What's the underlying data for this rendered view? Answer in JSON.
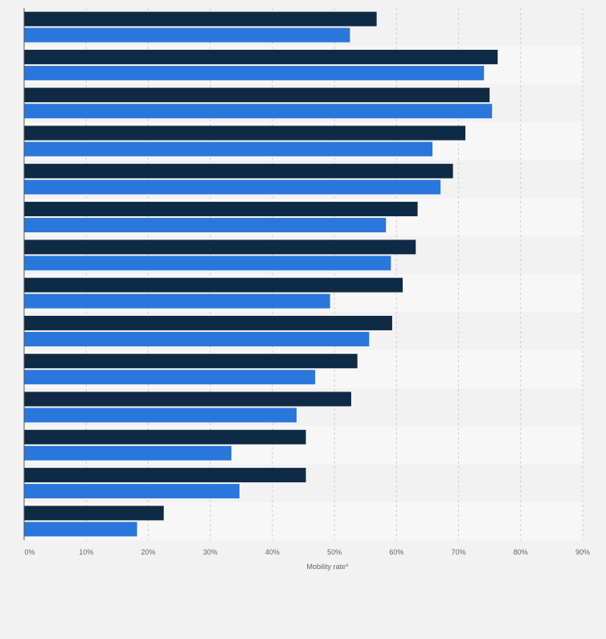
{
  "chart_data": {
    "type": "bar",
    "orientation": "horizontal",
    "xlabel": "Mobility rate*",
    "xlim": [
      0,
      90
    ],
    "x_ticks": [
      0,
      10,
      20,
      30,
      40,
      50,
      60,
      70,
      80,
      90
    ],
    "x_tick_labels": [
      "0%",
      "10%",
      "20%",
      "30%",
      "40%",
      "50%",
      "60%",
      "70%",
      "80%",
      "90%"
    ],
    "grid": true,
    "legend": "none",
    "category_labels_visible": false,
    "series": [
      {
        "color": "#0f2a45",
        "values": [
          56.8,
          76.3,
          75.0,
          71.1,
          69.1,
          63.4,
          63.1,
          61.0,
          59.3,
          53.7,
          52.7,
          45.4,
          45.4,
          22.5
        ]
      },
      {
        "color": "#2a77dc",
        "values": [
          52.5,
          74.1,
          75.4,
          65.8,
          67.1,
          58.3,
          59.1,
          49.3,
          55.6,
          46.9,
          43.9,
          33.4,
          34.7,
          18.2
        ]
      }
    ]
  }
}
